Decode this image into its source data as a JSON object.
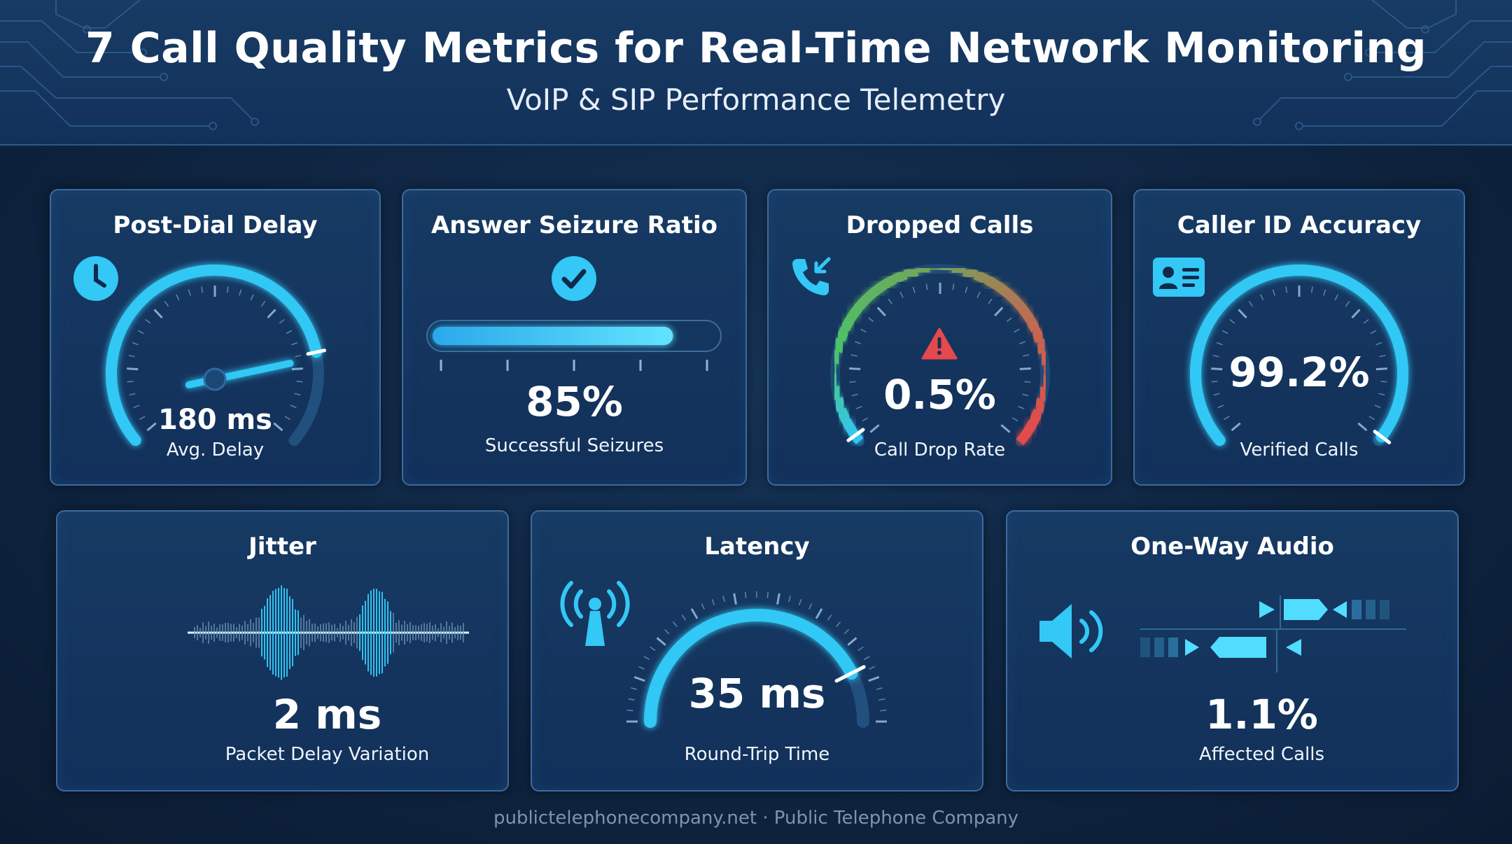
{
  "header": {
    "title": "7 Call Quality Metrics for Real-Time Network Monitoring",
    "subtitle": "VoIP & SIP Performance Telemetry"
  },
  "colors": {
    "accent": "#33c8f5",
    "accent_bright": "#62e3ff",
    "card_border": "#3c6b9d",
    "warning_red": "#e5484d",
    "good_green": "#49c46a"
  },
  "metrics": {
    "post_dial_delay": {
      "title": "Post-Dial Delay",
      "value": "180 ms",
      "caption": "Avg. Delay",
      "icon": "clock-icon",
      "gauge_fraction": 0.8
    },
    "answer_seizure_ratio": {
      "title": "Answer Seizure Ratio",
      "value": "85%",
      "caption": "Successful Seizures",
      "icon": "checkmark-icon",
      "progress": 0.85
    },
    "dropped_calls": {
      "title": "Dropped Calls",
      "value": "0.5%",
      "caption": "Call Drop Rate",
      "icon": "phone-incoming-icon",
      "alert_icon": "warning-icon"
    },
    "caller_id_accuracy": {
      "title": "Caller ID Accuracy",
      "value": "99.2%",
      "caption": "Verified Calls",
      "icon": "id-card-icon",
      "gauge_fraction": 0.99
    },
    "jitter": {
      "title": "Jitter",
      "value": "2 ms",
      "caption": "Packet Delay Variation",
      "icon": "waveform-icon"
    },
    "latency": {
      "title": "Latency",
      "value": "35 ms",
      "caption": "Round-Trip Time",
      "icon": "radio-tower-icon",
      "gauge_fraction": 0.85
    },
    "one_way_audio": {
      "title": "One-Way Audio",
      "value": "1.1%",
      "caption": "Affected Calls",
      "icon": "speaker-icon"
    }
  },
  "footer": {
    "text": "publictelephonecompany.net · Public Telephone Company"
  }
}
